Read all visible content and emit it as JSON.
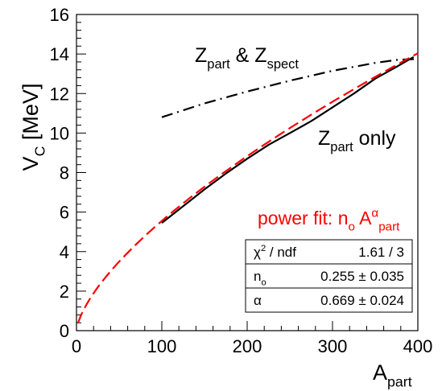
{
  "chart_data": {
    "type": "line",
    "xlabel": {
      "main": "A",
      "sub": "part"
    },
    "ylabel": {
      "main": "V",
      "sub": "C",
      "unit": "[MeV]"
    },
    "xlim": [
      0,
      400
    ],
    "ylim": [
      0,
      16
    ],
    "x_ticks": [
      0,
      100,
      200,
      300,
      400
    ],
    "y_ticks": [
      0,
      2,
      4,
      6,
      8,
      10,
      12,
      14,
      16
    ],
    "x_tick_labels": [
      "0",
      "100",
      "200",
      "300",
      "400"
    ],
    "y_tick_labels": [
      "0",
      "2",
      "4",
      "6",
      "8",
      "10",
      "12",
      "14",
      "16"
    ],
    "grid": false,
    "series": [
      {
        "style": "dash-dot",
        "color": "#000000",
        "x": [
          100,
          150,
          200,
          250,
          300,
          350,
          375,
          400
        ],
        "y": [
          10.8,
          11.5,
          12.1,
          12.65,
          13.15,
          13.55,
          13.7,
          13.75
        ]
      },
      {
        "style": "solid",
        "color": "#000000",
        "x": [
          100,
          125,
          150,
          175,
          200,
          225,
          250,
          275,
          300,
          325,
          350,
          375,
          395
        ],
        "y": [
          5.45,
          6.3,
          7.15,
          7.95,
          8.7,
          9.4,
          10.0,
          10.6,
          11.3,
          12.0,
          12.75,
          13.35,
          13.85
        ]
      },
      {
        "style": "dashed",
        "color": "#ff0000",
        "fit": {
          "n0": 0.255,
          "alpha": 0.669
        },
        "x_range": [
          2,
          400
        ]
      }
    ],
    "annotations": [
      {
        "id": "z-part-spect",
        "parts": [
          {
            "t": "Z"
          },
          {
            "t": "part",
            "sub": true
          },
          {
            "t": " & Z"
          },
          {
            "t": "spect",
            "sub": true
          }
        ],
        "color": "#000000"
      },
      {
        "id": "z-part-only",
        "parts": [
          {
            "t": "Z"
          },
          {
            "t": "part",
            "sub": true
          },
          {
            "t": " only"
          }
        ],
        "color": "#000000"
      },
      {
        "id": "power-fit",
        "parts": [
          {
            "t": "power fit:  n"
          },
          {
            "t": "o",
            "sub": true
          },
          {
            "t": " A"
          },
          {
            "t": "α",
            "sup": true
          },
          {
            "t": "part",
            "sub": true
          }
        ],
        "color": "#ff0000"
      }
    ],
    "stats_box": [
      {
        "name_parts": [
          {
            "t": "χ"
          },
          {
            "t": "2",
            "sup": true
          },
          {
            "t": " / ndf"
          }
        ],
        "value": "1.61 / 3"
      },
      {
        "name_parts": [
          {
            "t": "n"
          },
          {
            "t": "o",
            "sub": true
          }
        ],
        "value": "0.255 ± 0.035"
      },
      {
        "name_parts": [
          {
            "t": "α"
          }
        ],
        "value": "0.669 ± 0.024"
      }
    ]
  }
}
